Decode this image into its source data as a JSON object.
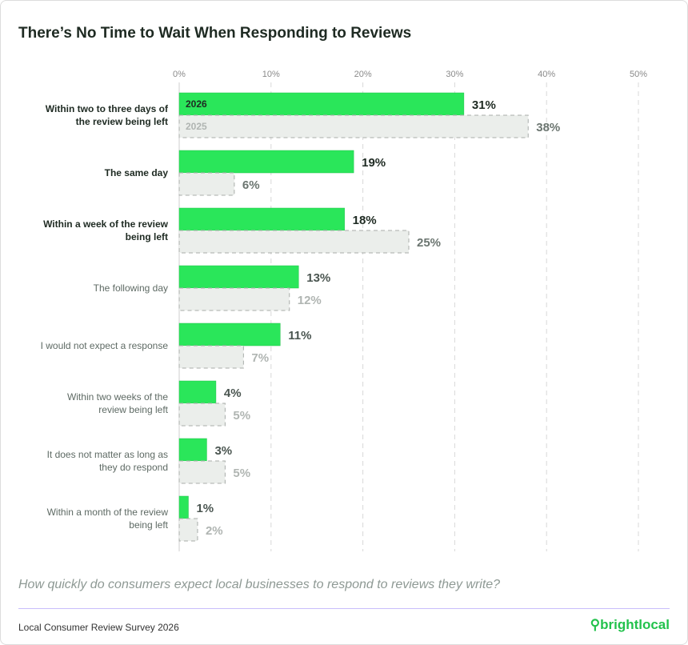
{
  "title": "There’s No Time to Wait When Responding to Reviews",
  "question": "How quickly do consumers expect local businesses to respond to reviews they write?",
  "source": "Local Consumer Review Survey 2026",
  "logo": "brightlocal",
  "colors": {
    "series_2026": "#2ae65a",
    "series_2025": "#ebeeeb",
    "logo": "#22c24c"
  },
  "chart_data": {
    "type": "bar",
    "orientation": "horizontal",
    "title": "There’s No Time to Wait When Responding to Reviews",
    "xlim": [
      0,
      50
    ],
    "ticks": [
      "0%",
      "10%",
      "20%",
      "30%",
      "40%",
      "50%"
    ],
    "tick_values": [
      0,
      10,
      20,
      30,
      40,
      50
    ],
    "grid": true,
    "categories": [
      "Within two to three days of\nthe review being left",
      "The same day",
      "Within a week of the review\nbeing left",
      "The following day",
      "I would not expect a response",
      "Within two weeks of the\nreview being left",
      "It does not matter as long as\nthey do respond",
      "Within a month of the review\nbeing left"
    ],
    "highlighted": [
      true,
      true,
      true,
      false,
      false,
      false,
      false,
      false
    ],
    "series": [
      {
        "name": "2026",
        "values": [
          31,
          19,
          18,
          13,
          11,
          4,
          3,
          1
        ]
      },
      {
        "name": "2025",
        "values": [
          38,
          6,
          25,
          12,
          7,
          5,
          5,
          2
        ]
      }
    ]
  }
}
